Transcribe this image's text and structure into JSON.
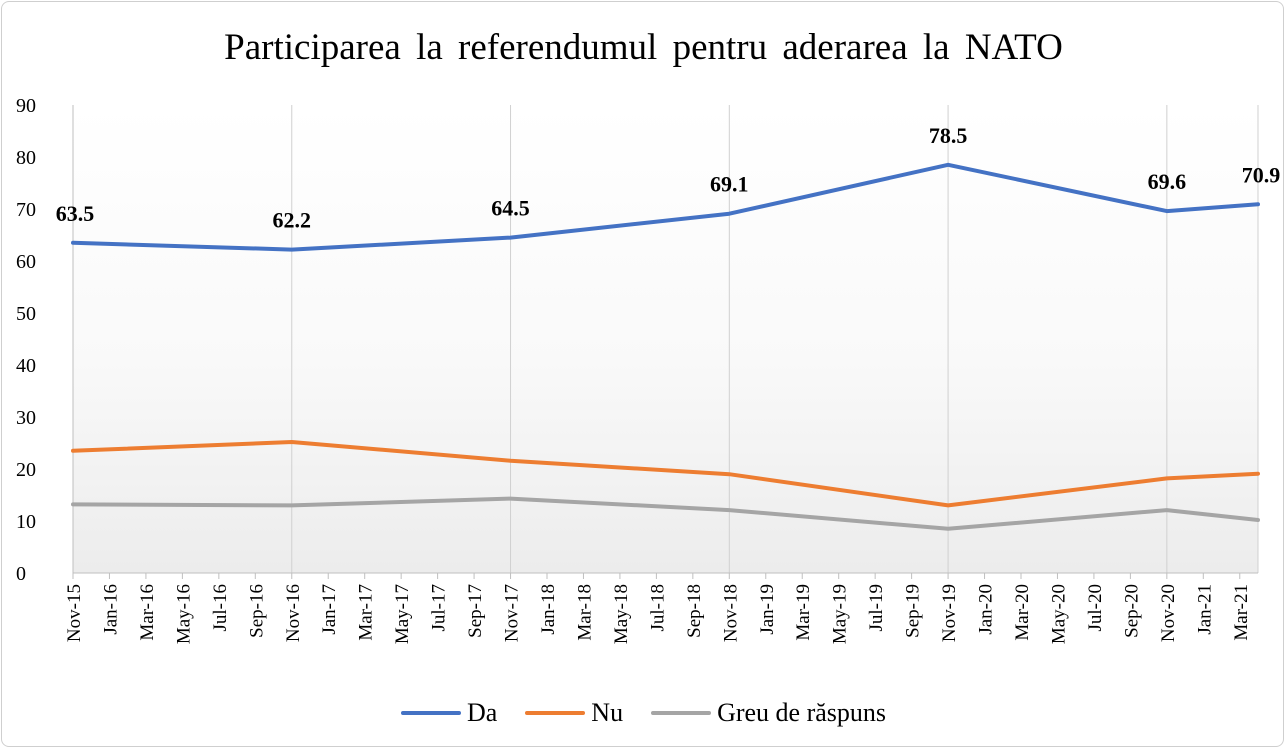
{
  "chart_data": {
    "type": "line",
    "title": "Participarea  la  referendumul  pentru  aderarea  la  NATO",
    "xlabel": "",
    "ylabel": "",
    "ylim": [
      0,
      90
    ],
    "yticks": [
      "0",
      "10",
      "20",
      "30",
      "40",
      "50",
      "60",
      "70",
      "80",
      "90"
    ],
    "x_tick_labels": [
      "Nov-15",
      "Jan-16",
      "Mar-16",
      "May-16",
      "Jul-16",
      "Sep-16",
      "Nov-16",
      "Jan-17",
      "Mar-17",
      "May-17",
      "Jul-17",
      "Sep-17",
      "Nov-17",
      "Jan-18",
      "Mar-18",
      "May-18",
      "Jul-18",
      "Sep-18",
      "Nov-18",
      "Jan-19",
      "Mar-19",
      "May-19",
      "Jul-19",
      "Sep-19",
      "Nov-19",
      "Jan-20",
      "Mar-20",
      "May-20",
      "Jul-20",
      "Sep-20",
      "Nov-20",
      "Jan-21",
      "Mar-21"
    ],
    "x_range": [
      "2015-11",
      "2021-04"
    ],
    "x": [
      "2015-11",
      "2016-11",
      "2017-11",
      "2018-11",
      "2019-11",
      "2020-11",
      "2021-04"
    ],
    "grid": "vertical lines at survey dates",
    "legend_position": "bottom",
    "series": [
      {
        "name": "Da",
        "color": "#4472C4",
        "values": [
          63.5,
          62.2,
          64.5,
          69.1,
          78.5,
          69.6,
          70.9
        ],
        "labels": [
          "63.5",
          "62.2",
          "64.5",
          "69.1",
          "78.5",
          "69.6",
          "70.9"
        ]
      },
      {
        "name": "Nu",
        "color": "#ED7D31",
        "values": [
          23.5,
          25.2,
          21.6,
          19.0,
          13.0,
          18.2,
          19.1
        ]
      },
      {
        "name": "Greu de răspuns",
        "color": "#A5A5A5",
        "values": [
          13.2,
          13.0,
          14.3,
          12.1,
          8.5,
          12.1,
          10.2
        ]
      }
    ]
  }
}
